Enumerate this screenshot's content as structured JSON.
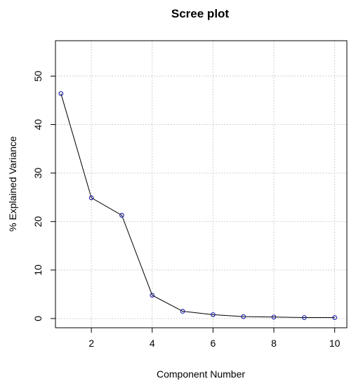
{
  "chart_data": {
    "type": "line",
    "title": "Scree plot",
    "xlabel": "Component Number",
    "ylabel": "% Explained Variance",
    "x": [
      1,
      2,
      3,
      4,
      5,
      6,
      7,
      8,
      9,
      10
    ],
    "series": [
      {
        "values": [
          46.4,
          24.9,
          21.3,
          4.8,
          1.5,
          0.8,
          0.4,
          0.3,
          0.2,
          0.2
        ]
      }
    ],
    "xlim": [
      0.82,
      10.4
    ],
    "ylim": [
      -1.9,
      57.3
    ],
    "xticks": [
      2,
      4,
      6,
      8,
      10
    ],
    "yticks": [
      0,
      10,
      20,
      30,
      40,
      50
    ],
    "grid": true,
    "marker": "open-circle",
    "colors": {
      "line": "#000000",
      "marker": "#1a1aa8",
      "grid": "#cfcfcf"
    }
  }
}
